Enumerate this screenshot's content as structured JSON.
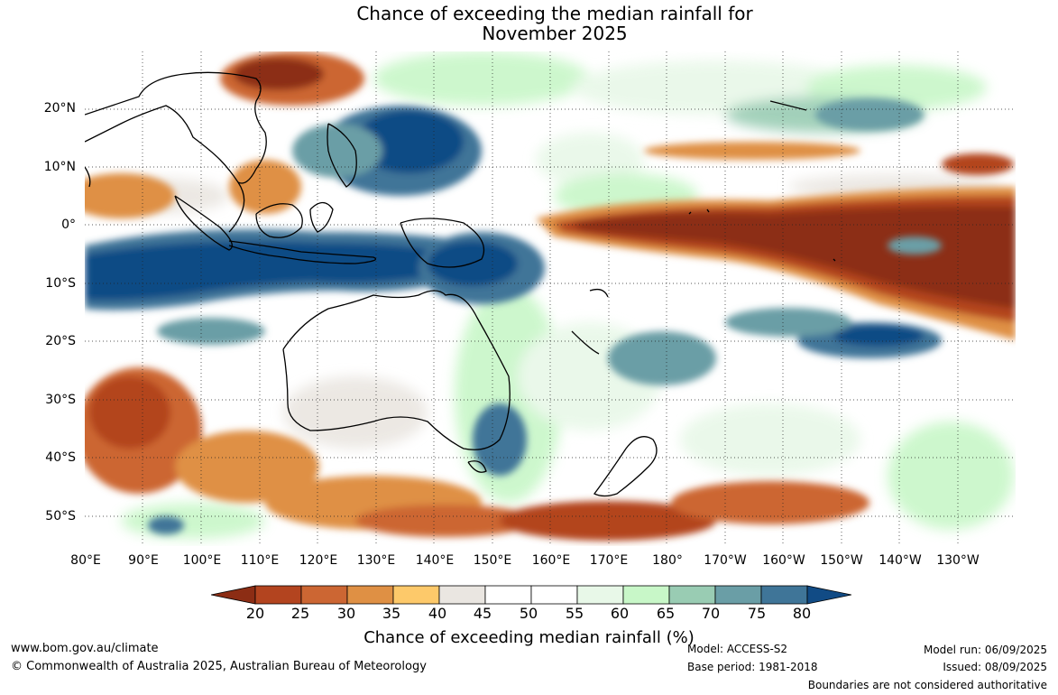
{
  "title": {
    "line1": "Chance of exceeding the median rainfall for",
    "line2": "November 2025"
  },
  "map": {
    "lat_labels": [
      "20°N",
      "10°N",
      "0°",
      "10°S",
      "20°S",
      "30°S",
      "40°S",
      "50°S"
    ],
    "lon_labels": [
      "80°E",
      "90°E",
      "100°E",
      "110°E",
      "120°E",
      "130°E",
      "140°E",
      "150°E",
      "160°E",
      "170°E",
      "180°",
      "170°W",
      "160°W",
      "150°W",
      "140°W",
      "130°W"
    ]
  },
  "colorbar": {
    "ticks": [
      "20",
      "25",
      "30",
      "35",
      "40",
      "45",
      "50",
      "55",
      "60",
      "65",
      "70",
      "75",
      "80"
    ],
    "colors": [
      "#8c2d14",
      "#b3441f",
      "#cc6633",
      "#df9044",
      "#fdc96a",
      "#eae6e1",
      "#ffffff",
      "#ffffff",
      "#e8f8e8",
      "#c8f7c8",
      "#99ccb3",
      "#6a9ea6",
      "#3f7598",
      "#114b85"
    ],
    "label": "Chance of exceeding median rainfall (%)"
  },
  "footer": {
    "website": "www.bom.gov.au/climate",
    "copyright": "© Commonwealth of Australia 2025, Australian Bureau of Meteorology",
    "model": "Model: ACCESS-S2",
    "base_period": "Base period: 1981-2018",
    "model_run": "Model run: 06/09/2025",
    "issued": "Issued: 08/09/2025",
    "disclaimer": "Boundaries are not considered authoritative"
  }
}
